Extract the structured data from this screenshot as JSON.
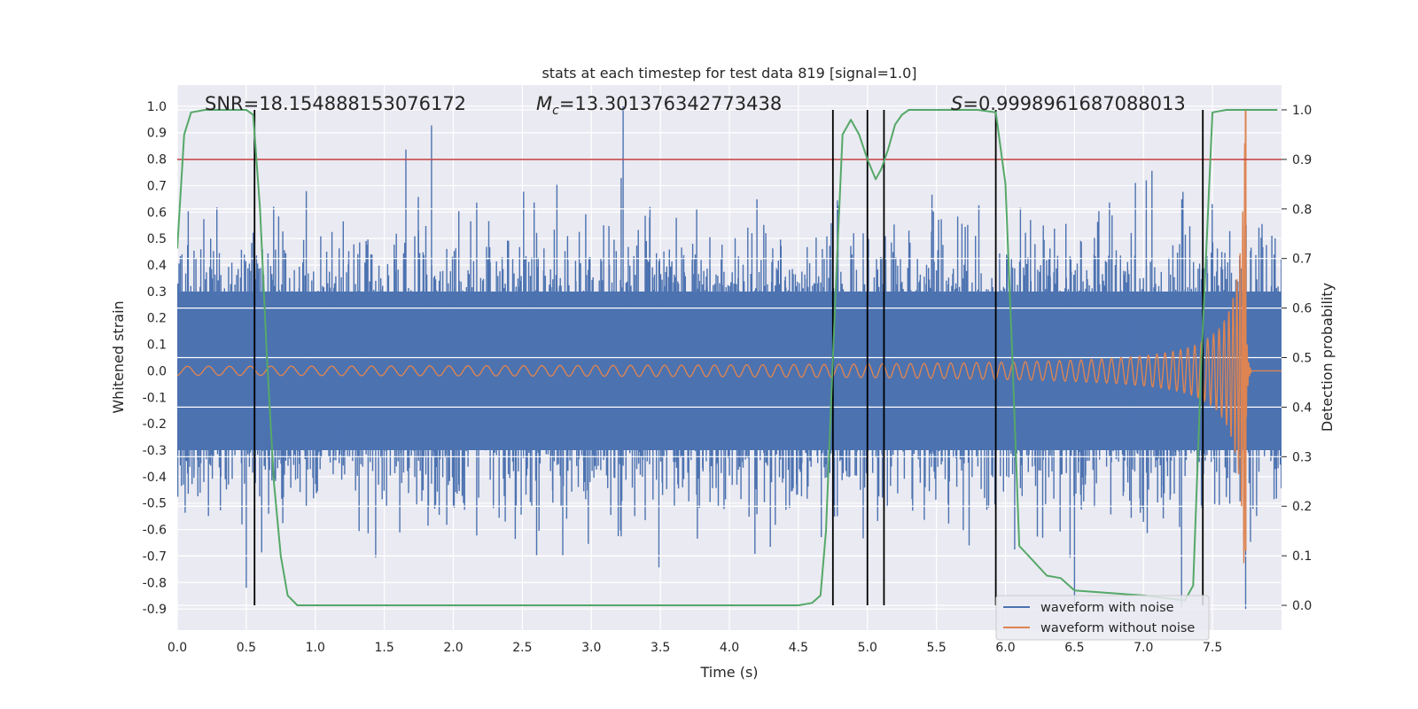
{
  "chart_data": {
    "type": "line",
    "title": "stats at each timestep for test data 819 [signal=1.0]",
    "xlabel": "Time (s)",
    "ylabel_left": "Whitened strain",
    "ylabel_right": "Detection probability",
    "xlim": [
      0.0,
      8.0
    ],
    "ylim_left": [
      -0.98,
      1.08
    ],
    "ylim_right": [
      -0.05,
      1.05
    ],
    "x_ticks": [
      "0.0",
      "0.5",
      "1.0",
      "1.5",
      "2.0",
      "2.5",
      "3.0",
      "3.5",
      "4.0",
      "4.5",
      "5.0",
      "5.5",
      "6.0",
      "6.5",
      "7.0",
      "7.5"
    ],
    "y_left_ticks": [
      "1.0",
      "0.9",
      "0.8",
      "0.7",
      "0.6",
      "0.5",
      "0.4",
      "0.3",
      "0.2",
      "0.1",
      "0.0",
      "-0.1",
      "-0.2",
      "-0.3",
      "-0.4",
      "-0.5",
      "-0.6",
      "-0.7",
      "-0.8",
      "-0.9"
    ],
    "y_right_ticks": [
      "1.0",
      "0.9",
      "0.8",
      "0.7",
      "0.6",
      "0.5",
      "0.4",
      "0.3",
      "0.2",
      "0.1",
      "0.0"
    ],
    "grid": true,
    "legend_position": "lower-right",
    "annotations": {
      "snr": "SNR=18.154888153076172",
      "mc_symbol": "M",
      "mc_sub": "c",
      "mc_value": "=13.301376342773438",
      "s_symbol": "S",
      "s_value": "=0.9998961687088013"
    },
    "threshold": {
      "y_right": 0.9,
      "color": "#c03d3e"
    },
    "vertical_lines_x": [
      0.56,
      4.75,
      5.0,
      5.12,
      5.93,
      7.43
    ],
    "series": [
      {
        "name": "waveform with noise",
        "color": "#4c72b0",
        "axis": "left",
        "description_stats": {
          "core_amplitude": 0.3,
          "spike_max": 1.0,
          "spike_min": -0.9
        }
      },
      {
        "name": "waveform without noise",
        "color": "#dd8452",
        "axis": "left",
        "chirp_peak_x": 7.74
      },
      {
        "name": "detection probability",
        "color": "#55a868",
        "axis": "right",
        "x": [
          0.0,
          0.05,
          0.1,
          0.2,
          0.3,
          0.4,
          0.5,
          0.55,
          0.6,
          0.65,
          0.7,
          0.75,
          0.8,
          0.87,
          1.0,
          2.0,
          3.0,
          4.0,
          4.5,
          4.6,
          4.66,
          4.7,
          4.75,
          4.78,
          4.82,
          4.88,
          4.94,
          5.0,
          5.06,
          5.1,
          5.15,
          5.2,
          5.25,
          5.3,
          5.5,
          5.8,
          5.93,
          6.0,
          6.05,
          6.1,
          6.2,
          6.3,
          6.4,
          6.5,
          7.0,
          7.3,
          7.36,
          7.42,
          7.5,
          7.6,
          7.7,
          7.97
        ],
        "y": [
          0.72,
          0.95,
          0.995,
          1.0,
          1.0,
          1.0,
          1.0,
          0.99,
          0.8,
          0.5,
          0.25,
          0.1,
          0.02,
          0.0,
          0.0,
          0.0,
          0.0,
          0.0,
          0.0,
          0.005,
          0.02,
          0.15,
          0.5,
          0.7,
          0.95,
          0.98,
          0.95,
          0.9,
          0.86,
          0.88,
          0.92,
          0.97,
          0.99,
          1.0,
          1.0,
          1.0,
          0.995,
          0.85,
          0.5,
          0.12,
          0.09,
          0.06,
          0.055,
          0.03,
          0.02,
          0.01,
          0.04,
          0.5,
          0.995,
          1.0,
          1.0,
          1.0
        ]
      }
    ]
  }
}
